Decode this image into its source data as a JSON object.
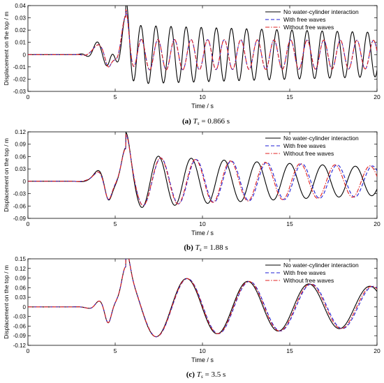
{
  "chart_data": [
    {
      "type": "line",
      "xlabel": "Time / s",
      "ylabel": "Displacement on the top / m",
      "xlim": [
        0,
        20
      ],
      "ylim": [
        -0.03,
        0.04
      ],
      "xticks": [
        0,
        5,
        10,
        15,
        20
      ],
      "yticks": [
        -0.03,
        -0.02,
        -0.01,
        0,
        0.01,
        0.02,
        0.03,
        0.04
      ],
      "ytick_labels": [
        "-0.03",
        "-0.02",
        "-0.01",
        "0",
        "0.01",
        "0.02",
        "0.03",
        "0.04"
      ],
      "legend_position": "top-right",
      "caption": {
        "prefix": "(a)",
        "symbol": "T",
        "sub": "s",
        "value": "= 0.866 s"
      },
      "series": [
        {
          "name": "No water-cylinder interaction",
          "color": "#000000",
          "dash": "solid",
          "amp": 0.024,
          "decay": 0.02,
          "period": 0.866,
          "phase": 0.0,
          "peak": 0.025
        },
        {
          "name": "With free waves",
          "color": "#1f1fd6",
          "dash": "dashed",
          "amp": 0.0125,
          "decay": 0.005,
          "period": 0.95,
          "phase": 0.35,
          "peak": 0.029
        },
        {
          "name": "Without free waves",
          "color": "#e02020",
          "dash": "dashdot",
          "amp": 0.0125,
          "decay": 0.005,
          "period": 0.95,
          "phase": 0.35,
          "peak": 0.029
        }
      ]
    },
    {
      "type": "line",
      "xlabel": "Time / s",
      "ylabel": "Displacement on the top / m",
      "xlim": [
        0,
        20
      ],
      "ylim": [
        -0.09,
        0.12
      ],
      "xticks": [
        0,
        5,
        10,
        15,
        20
      ],
      "yticks": [
        -0.09,
        -0.06,
        -0.03,
        0,
        0.03,
        0.06,
        0.09,
        0.12
      ],
      "ytick_labels": [
        "-0.09",
        "-0.06",
        "-0.03",
        "0",
        "0.03",
        "0.06",
        "0.09",
        "0.12"
      ],
      "legend_position": "top-right",
      "caption": {
        "prefix": "(b)",
        "symbol": "T",
        "sub": "s",
        "value": "= 1.88 s"
      },
      "series": [
        {
          "name": "No water-cylinder interaction",
          "color": "#000000",
          "dash": "solid",
          "amp": 0.065,
          "decay": 0.045,
          "period": 1.88,
          "phase": 0.0,
          "peak": 0.062
        },
        {
          "name": "With free waves",
          "color": "#1f1fd6",
          "dash": "dashed",
          "amp": 0.06,
          "decay": 0.035,
          "period": 2.02,
          "phase": 0.0,
          "peak": 0.062
        },
        {
          "name": "Without free waves",
          "color": "#e02020",
          "dash": "dashdot",
          "amp": 0.06,
          "decay": 0.035,
          "period": 2.0,
          "phase": 0.0,
          "peak": 0.062
        }
      ]
    },
    {
      "type": "line",
      "xlabel": "Time / s",
      "ylabel": "Displacement on the top / m",
      "xlim": [
        0,
        20
      ],
      "ylim": [
        -0.12,
        0.15
      ],
      "xticks": [
        0,
        5,
        10,
        15,
        20
      ],
      "yticks": [
        -0.12,
        -0.09,
        -0.06,
        -0.03,
        0,
        0.03,
        0.06,
        0.09,
        0.12,
        0.15
      ],
      "ytick_labels": [
        "-0.12",
        "-0.09",
        "-0.06",
        "-0.03",
        "0",
        "0.03",
        "0.06",
        "0.09",
        "0.12",
        "0.15"
      ],
      "legend_position": "top-right",
      "caption": {
        "prefix": "(c)",
        "symbol": "T",
        "sub": "s",
        "value": "= 3.5 s"
      },
      "series": [
        {
          "name": "No water-cylinder interaction",
          "color": "#000000",
          "dash": "solid",
          "amp": 0.097,
          "decay": 0.03,
          "period": 3.5,
          "phase": 0.0,
          "peak": 0.097
        },
        {
          "name": "With free waves",
          "color": "#1f1fd6",
          "dash": "dashed",
          "amp": 0.097,
          "decay": 0.03,
          "period": 3.55,
          "phase": 0.0,
          "peak": 0.097
        },
        {
          "name": "Without free waves",
          "color": "#e02020",
          "dash": "dashdot",
          "amp": 0.097,
          "decay": 0.03,
          "period": 3.53,
          "phase": 0.0,
          "peak": 0.097
        }
      ]
    }
  ]
}
